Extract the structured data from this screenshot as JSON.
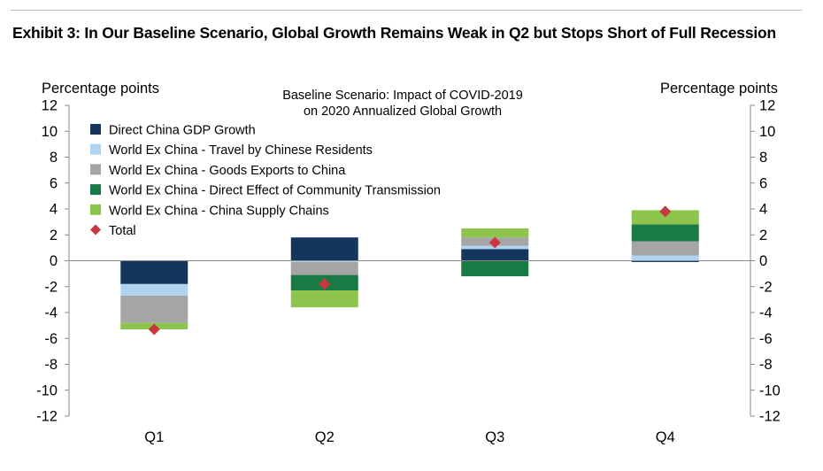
{
  "exhibit_title": "Exhibit 3: In Our Baseline Scenario, Global Growth Remains Weak in Q2 but Stops Short of Full Recession",
  "chart_data": {
    "type": "bar",
    "stacked": true,
    "title": "Baseline Scenario: Impact of COVID-2019",
    "subtitle": "on 2020 Annualized Global Growth",
    "ylabel_left": "Percentage points",
    "ylabel_right": "Percentage points",
    "ylim": [
      -12,
      12
    ],
    "yticks": [
      12,
      10,
      8,
      6,
      4,
      2,
      0,
      -2,
      -4,
      -6,
      -8,
      -10,
      -12
    ],
    "categories": [
      "Q1",
      "Q2",
      "Q3",
      "Q4"
    ],
    "legend_position": "top-left",
    "series": [
      {
        "name": "Direct China GDP Growth",
        "color": "#14365d",
        "values": [
          -1.8,
          1.8,
          0.9,
          -0.1
        ]
      },
      {
        "name": "World Ex China - Travel by Chinese Residents",
        "color": "#aed4f2",
        "values": [
          -0.9,
          -0.1,
          0.25,
          0.4
        ]
      },
      {
        "name": "World Ex China - Goods Exports to China",
        "color": "#a5a5a5",
        "values": [
          -2.1,
          -1.0,
          0.65,
          1.1
        ]
      },
      {
        "name": "World Ex China - Direct Effect of Community Transmission",
        "color": "#1a7a45",
        "values": [
          0.0,
          -1.2,
          -1.2,
          1.3
        ]
      },
      {
        "name": "World Ex China - China Supply Chains",
        "color": "#8dc44b",
        "values": [
          -0.5,
          -1.3,
          0.7,
          1.1
        ]
      }
    ],
    "total": {
      "name": "Total",
      "color": "#c8383e",
      "values": [
        -5.3,
        -1.8,
        1.4,
        3.8
      ]
    }
  }
}
